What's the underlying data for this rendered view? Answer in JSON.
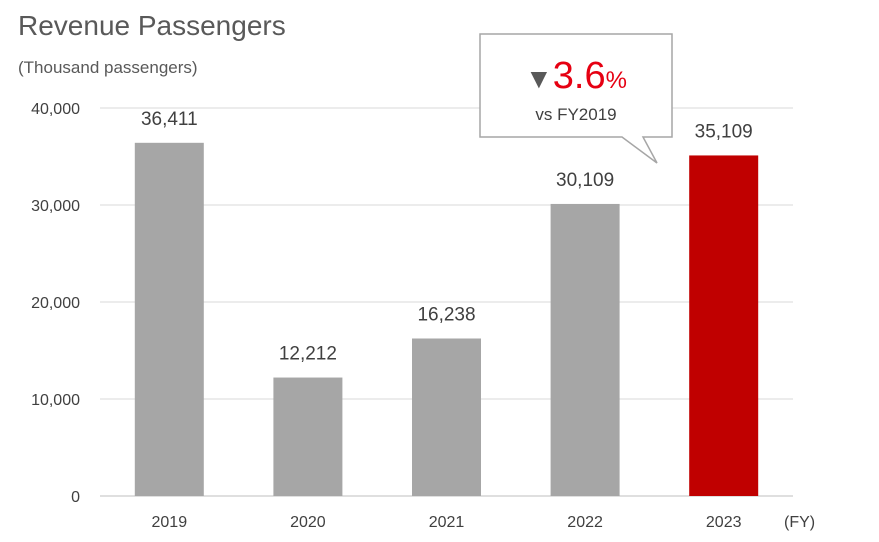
{
  "chart_data": {
    "type": "bar",
    "title": "Revenue Passengers",
    "subtitle": "(Thousand passengers)",
    "xlabel": "(FY)",
    "ylabel": "",
    "categories": [
      "2019",
      "2020",
      "2021",
      "2022",
      "2023"
    ],
    "values": [
      36411,
      12212,
      16238,
      30109,
      35109
    ],
    "value_labels": [
      "36,411",
      "12,212",
      "16,238",
      "30,109",
      "35,109"
    ],
    "ylim": [
      0,
      40000
    ],
    "yticks": [
      0,
      10000,
      20000,
      30000,
      40000
    ],
    "ytick_labels": [
      "0",
      "10,000",
      "20,000",
      "30,000",
      "40,000"
    ],
    "grid": true,
    "colors": {
      "default": "#a6a6a6",
      "highlight": "#c00000"
    },
    "highlight_index": 4,
    "annotation": {
      "arrow": "▼",
      "value": "3.6",
      "unit": "%",
      "text": "vs FY2019"
    }
  }
}
